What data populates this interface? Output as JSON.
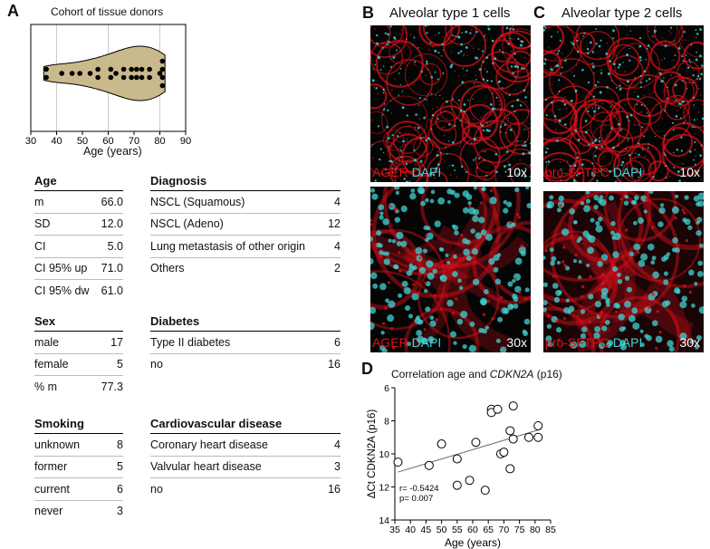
{
  "panels": {
    "a": "A",
    "b": "B",
    "c": "C",
    "d": "D"
  },
  "violin": {
    "title": "Cohort of tissue donors",
    "xlabel": "Age (years)",
    "ticks": [
      30,
      40,
      50,
      60,
      70,
      80,
      90
    ],
    "ages": [
      36,
      36,
      42,
      46,
      49,
      53,
      56,
      56,
      61,
      61,
      63,
      66,
      66,
      69,
      69,
      71,
      71,
      73,
      73,
      76,
      76,
      80,
      81,
      81,
      81,
      81
    ]
  },
  "tables": {
    "age": {
      "header": "Age",
      "rows": [
        [
          "m",
          "66.0"
        ],
        [
          "SD",
          "12.0"
        ],
        [
          "CI",
          "5.0"
        ],
        [
          "CI 95% up",
          "71.0"
        ],
        [
          "CI 95% dw",
          "61.0"
        ]
      ]
    },
    "sex": {
      "header": "Sex",
      "rows": [
        [
          "male",
          "17"
        ],
        [
          "female",
          "5"
        ],
        [
          "% m",
          "77.3"
        ]
      ]
    },
    "smoking": {
      "header": "Smoking",
      "rows": [
        [
          "unknown",
          "8"
        ],
        [
          "former",
          "5"
        ],
        [
          "current",
          "6"
        ],
        [
          "never",
          "3"
        ]
      ]
    },
    "diagnosis": {
      "header": "Diagnosis",
      "rows": [
        [
          "NSCL (Squamous)",
          "4"
        ],
        [
          "NSCL (Adeno)",
          "12"
        ],
        [
          "Lung metastasis of other origin",
          "4"
        ],
        [
          "Others",
          "2"
        ]
      ]
    },
    "diabetes": {
      "header": "Diabetes",
      "rows": [
        [
          "Type II diabetes",
          "6"
        ],
        [
          "no",
          "16"
        ]
      ]
    },
    "cardio": {
      "header": "Cardiovascular disease",
      "rows": [
        [
          "Coronary heart disease",
          "4"
        ],
        [
          "Valvular heart disease",
          "3"
        ],
        [
          "no",
          "16"
        ]
      ]
    }
  },
  "micrographs": {
    "b_title": "Alveolar type 1 cells",
    "c_title": "Alveolar type 2 cells",
    "b_marker": "AGER",
    "c_marker": "pro-SFTPC",
    "dapi": "DAPI",
    "mag_low": "10x",
    "mag_high": "30x",
    "marker_color": "#e0101a",
    "dapi_color": "#3fd4d4"
  },
  "chart_data": {
    "type": "scatter",
    "title_prefix": "Correlation age and",
    "title_gene": "CDKN2A",
    "title_suffix": "(p16)",
    "xlabel": "Age (years)",
    "ylabel": "ΔCt CDKN2A (p16)",
    "xlim": [
      35,
      85
    ],
    "ylim": [
      14,
      6
    ],
    "xticks": [
      35,
      40,
      45,
      50,
      55,
      60,
      65,
      70,
      75,
      80,
      85
    ],
    "yticks": [
      6,
      8,
      10,
      12,
      14
    ],
    "annotation_r": "r= -0.5424",
    "annotation_p": "p= 0.007",
    "points": [
      {
        "x": 36,
        "y": 10.5
      },
      {
        "x": 46,
        "y": 10.7
      },
      {
        "x": 50,
        "y": 9.4
      },
      {
        "x": 55,
        "y": 10.3
      },
      {
        "x": 55,
        "y": 11.9
      },
      {
        "x": 59,
        "y": 11.6
      },
      {
        "x": 61,
        "y": 9.3
      },
      {
        "x": 64,
        "y": 12.2
      },
      {
        "x": 66,
        "y": 7.3
      },
      {
        "x": 66,
        "y": 7.5
      },
      {
        "x": 68,
        "y": 7.3
      },
      {
        "x": 69,
        "y": 10.0
      },
      {
        "x": 70,
        "y": 9.9
      },
      {
        "x": 72,
        "y": 8.6
      },
      {
        "x": 72,
        "y": 10.9
      },
      {
        "x": 73,
        "y": 7.1
      },
      {
        "x": 73,
        "y": 9.1
      },
      {
        "x": 78,
        "y": 9.0
      },
      {
        "x": 81,
        "y": 8.3
      },
      {
        "x": 81,
        "y": 9.0
      }
    ],
    "fit": {
      "x": [
        36,
        82
      ],
      "y": [
        11.1,
        8.5
      ]
    }
  }
}
